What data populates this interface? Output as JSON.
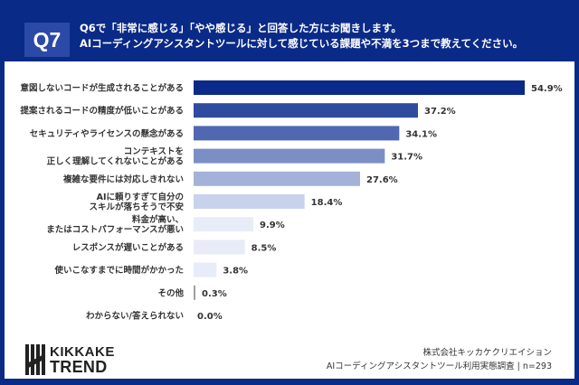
{
  "header": {
    "badge": "Q7",
    "line1": "Q6で「非常に感じる」「やや感じる」と回答した方にお聞きします。",
    "line2": "AIコーディングアシスタントツールに対して感じている課題や不満を3つまで教えてください。"
  },
  "chart_data": {
    "type": "bar",
    "orientation": "horizontal",
    "unit": "%",
    "xlim": [
      0,
      54.9
    ],
    "grid": false,
    "categories": [
      [
        "意図しないコードが生成されることがある"
      ],
      [
        "提案されるコードの精度が低いことがある"
      ],
      [
        "セキュリティやライセンスの懸念がある"
      ],
      [
        "コンテキストを",
        "正しく理解してくれないことがある"
      ],
      [
        "複雑な要件には対応しきれない"
      ],
      [
        "AIに頼りすぎて自分の",
        "スキルが落ちそうで不安"
      ],
      [
        "料金が高い、",
        "またはコストパフォーマンスが悪い"
      ],
      [
        "レスポンスが遅いことがある"
      ],
      [
        "使いこなすまでに時間がかかった"
      ],
      [
        "その他"
      ],
      [
        "わからない/答えられない"
      ]
    ],
    "values": [
      54.9,
      37.2,
      34.1,
      31.7,
      27.6,
      18.4,
      9.9,
      8.5,
      3.8,
      0.3,
      0.0
    ],
    "labels": [
      "54.9%",
      "37.2%",
      "34.1%",
      "31.7%",
      "27.6%",
      "18.4%",
      "9.9%",
      "8.5%",
      "3.8%",
      "0.3%",
      "0.0%"
    ],
    "colors": [
      "#0a2a8a",
      "#2f4b9f",
      "#5068b1",
      "#7b8fc5",
      "#a4b2d9",
      "#c9d2eb",
      "#e7ecf8",
      "#e7ecf8",
      "#e7ecf8",
      "#a0a0a0",
      "#e7ecf8"
    ]
  },
  "footer": {
    "logo_line1": "KIKKAKE",
    "logo_line2": "TREND",
    "company": "株式会社キッカケクリエイション",
    "survey": "AIコーディングアシスタントツール利用実態調査 | n=293"
  }
}
